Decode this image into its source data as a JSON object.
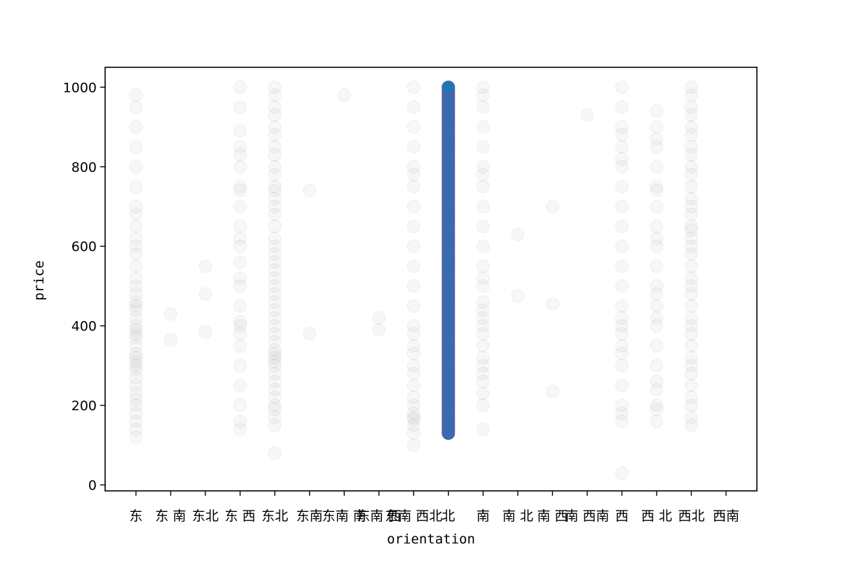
{
  "chart_data": {
    "type": "scatter",
    "title": "",
    "xlabel": "orientation",
    "ylabel": "price",
    "ylim": [
      -15,
      1050
    ],
    "y_ticks": [
      0,
      200,
      400,
      600,
      800,
      1000
    ],
    "grid": false,
    "legend": "none",
    "highlight_color": "#1f77b4",
    "highlight_edge_color": "#6a55a8",
    "background_point_color": "#7f7f7f",
    "categories": [
      "东",
      "东 南",
      "东北",
      "东 西",
      "东北",
      "东南",
      "东南 南",
      "东南 西",
      "东南 西北",
      "北",
      "南",
      "南 北",
      "南 西",
      "南 西南",
      "西",
      "西 北",
      "西北",
      "西南"
    ],
    "highlight_category": "南",
    "points": [
      {
        "category": "东",
        "prices": [
          120,
          140,
          160,
          180,
          200,
          215,
          230,
          250,
          270,
          290,
          300,
          310,
          320,
          330,
          350,
          370,
          380,
          390,
          400,
          420,
          440,
          450,
          460,
          480,
          500,
          520,
          550,
          580,
          600,
          620,
          650,
          680,
          700,
          750,
          800,
          850,
          900,
          950,
          980
        ]
      },
      {
        "category": "东 南",
        "prices": [
          365,
          430
        ]
      },
      {
        "category": "东北",
        "prices": [
          385,
          480,
          550
        ]
      },
      {
        "category": "东北",
        "prices": [
          140,
          160,
          200,
          250,
          300,
          350,
          380,
          400,
          410,
          450,
          500,
          520,
          560,
          600,
          620,
          650,
          700,
          740,
          750,
          800,
          830,
          850,
          890,
          950,
          1000
        ]
      },
      {
        "category": "东南",
        "prices": [
          80,
          150,
          170,
          190,
          200,
          220,
          240,
          260,
          280,
          300,
          310,
          320,
          330,
          340,
          360,
          380,
          400,
          420,
          440,
          460,
          480,
          500,
          520,
          540,
          560,
          580,
          600,
          620,
          650,
          680,
          700,
          720,
          740,
          750,
          780,
          800,
          830,
          850,
          880,
          900,
          930,
          950,
          980,
          1000
        ]
      },
      {
        "category": "东南 南",
        "prices": [
          380,
          740
        ]
      },
      {
        "category": "东南 西",
        "prices": [
          980
        ]
      },
      {
        "category": "东南 西北",
        "prices": [
          390,
          420
        ]
      },
      {
        "category": "北",
        "prices": [
          100,
          130,
          150,
          165,
          170,
          180,
          200,
          220,
          250,
          280,
          300,
          330,
          350,
          380,
          400,
          450,
          500,
          550,
          600,
          650,
          700,
          750,
          780,
          800,
          850,
          900,
          950,
          1000
        ]
      },
      {
        "category": "南",
        "range": [
          130,
          1000
        ]
      },
      {
        "category": "南 北",
        "prices": [
          140,
          200,
          230,
          260,
          280,
          300,
          320,
          350,
          380,
          400,
          420,
          440,
          460,
          500,
          520,
          550,
          600,
          650,
          700,
          750,
          780,
          800,
          850,
          900,
          950,
          980,
          1000
        ]
      },
      {
        "category": "南 西",
        "prices": [
          475,
          630
        ]
      },
      {
        "category": "南 西南",
        "prices": [
          235,
          455,
          700
        ]
      },
      {
        "category": "西",
        "prices": [
          930
        ]
      },
      {
        "category": "西 北",
        "prices": [
          30,
          160,
          180,
          200,
          250,
          300,
          330,
          350,
          380,
          400,
          420,
          450,
          500,
          550,
          600,
          650,
          700,
          750,
          800,
          820,
          850,
          880,
          900,
          950,
          1000
        ]
      },
      {
        "category": "西北",
        "prices": [
          160,
          190,
          200,
          240,
          260,
          300,
          350,
          400,
          420,
          450,
          480,
          500,
          550,
          600,
          620,
          650,
          700,
          740,
          750,
          800,
          850,
          870,
          900,
          940
        ]
      },
      {
        "category": "西南",
        "prices": [
          150,
          170,
          200,
          220,
          250,
          280,
          300,
          320,
          350,
          380,
          400,
          420,
          450,
          480,
          500,
          520,
          550,
          580,
          600,
          620,
          640,
          650,
          680,
          700,
          720,
          750,
          780,
          800,
          830,
          850,
          880,
          900,
          930,
          950,
          980,
          1000
        ]
      }
    ]
  }
}
